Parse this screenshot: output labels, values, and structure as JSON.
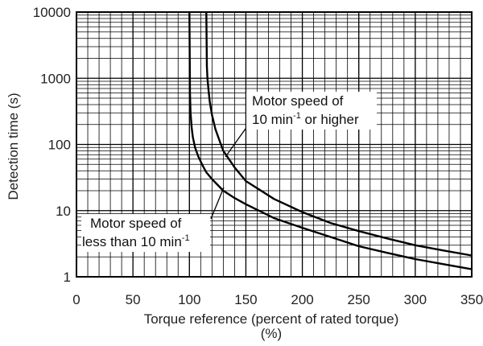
{
  "chart_data": {
    "type": "line",
    "title": "",
    "xlabel_line1": "Torque reference (percent of rated torque)",
    "xlabel_line2": "(%)",
    "ylabel": "Detection time (s)",
    "xlim": [
      0,
      350
    ],
    "ylim": [
      1,
      10000
    ],
    "yscale": "log",
    "grid": true,
    "x_ticks": [
      0,
      50,
      100,
      150,
      200,
      250,
      300,
      350
    ],
    "x_tick_labels": [
      "0",
      "50",
      "100",
      "150",
      "200",
      "250",
      "300",
      "350"
    ],
    "y_ticks": [
      1,
      10,
      100,
      1000,
      10000
    ],
    "y_tick_labels": [
      "1",
      "10",
      "100",
      "1000",
      "10000"
    ],
    "series": [
      {
        "x": [
          100,
          100.5,
          101,
          102,
          103,
          105,
          108,
          112,
          115,
          120,
          130,
          140,
          150,
          175,
          200,
          225,
          250,
          275,
          300,
          325,
          350
        ],
        "y": [
          10000,
          600,
          300,
          180,
          130,
          90,
          65,
          47,
          38,
          30,
          20,
          15.5,
          12.5,
          7.7,
          5.5,
          4.0,
          2.9,
          2.3,
          1.85,
          1.55,
          1.3
        ]
      },
      {
        "x": [
          115,
          115.5,
          116,
          117,
          118,
          120,
          123,
          127,
          130,
          135,
          140,
          150,
          175,
          200,
          225,
          250,
          275,
          300,
          325,
          350
        ],
        "y": [
          10000,
          1500,
          1000,
          650,
          450,
          280,
          170,
          110,
          80,
          60,
          45,
          28,
          15,
          9.5,
          6.5,
          4.9,
          3.8,
          3.0,
          2.5,
          2.1
        ]
      }
    ],
    "annotations": [
      {
        "line1": "Motor speed of",
        "line2_main": "10 min",
        "line2_sup": "-1",
        "line2_tail": " or higher"
      },
      {
        "line1": "Motor speed of",
        "line2_main": "less than 10 min",
        "line2_sup": "-1",
        "line2_tail": ""
      }
    ],
    "colors": {
      "line": "#000000",
      "grid": "#000000",
      "text": "#222222"
    }
  }
}
